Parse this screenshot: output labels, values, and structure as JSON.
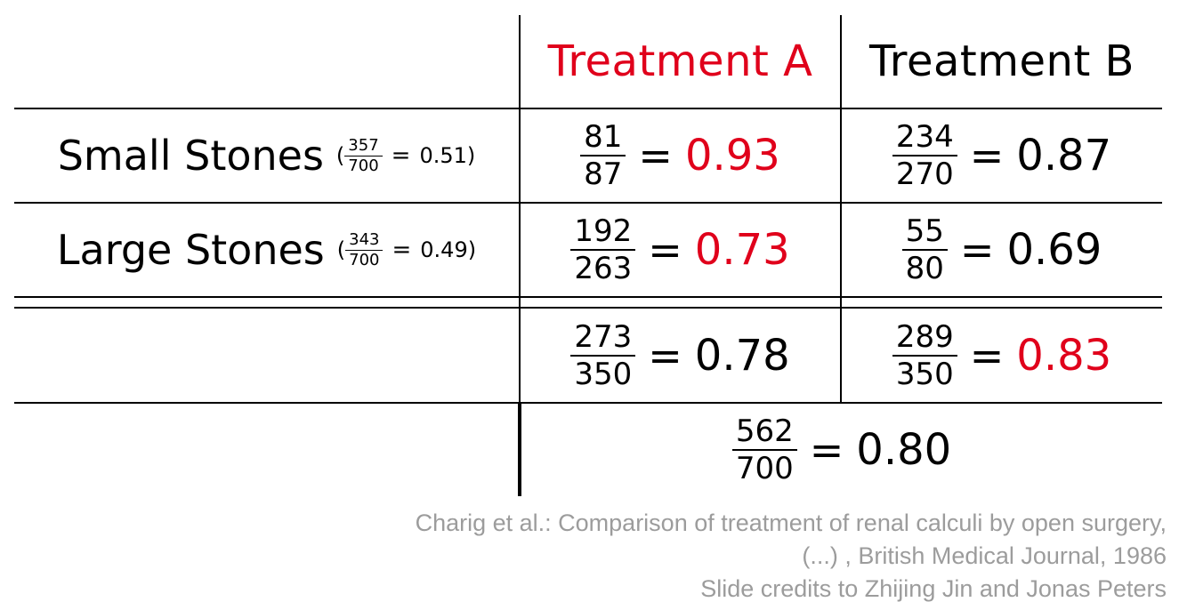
{
  "header": {
    "treatment_a": "Treatment A",
    "treatment_b": "Treatment B"
  },
  "rows": {
    "small": {
      "label": "Small Stones",
      "open_paren": "(",
      "close_paren": ")",
      "frac_num": "357",
      "frac_den": "700",
      "equals": "=",
      "value": "0.51",
      "a": {
        "num": "81",
        "den": "87",
        "equals": "=",
        "value": "0.93"
      },
      "b": {
        "num": "234",
        "den": "270",
        "equals": "=",
        "value": "0.87"
      }
    },
    "large": {
      "label": "Large Stones",
      "open_paren": "(",
      "close_paren": ")",
      "frac_num": "343",
      "frac_den": "700",
      "equals": "=",
      "value": "0.49",
      "a": {
        "num": "192",
        "den": "263",
        "equals": "=",
        "value": "0.73"
      },
      "b": {
        "num": "55",
        "den": "80",
        "equals": "=",
        "value": "0.69"
      }
    },
    "total": {
      "a": {
        "num": "273",
        "den": "350",
        "equals": "=",
        "value": "0.78"
      },
      "b": {
        "num": "289",
        "den": "350",
        "equals": "=",
        "value": "0.83"
      }
    },
    "overall": {
      "num": "562",
      "den": "700",
      "equals": "=",
      "value": "0.80"
    }
  },
  "colors": {
    "highlight": "#e0001b",
    "footer_text": "#9c9c9c"
  },
  "footer": {
    "line1": "Charig et al.: Comparison of treatment of renal calculi by open surgery,",
    "line2": "(...) , British Medical Journal, 1986",
    "line3": "Slide credits to Zhijing Jin and Jonas Peters"
  }
}
